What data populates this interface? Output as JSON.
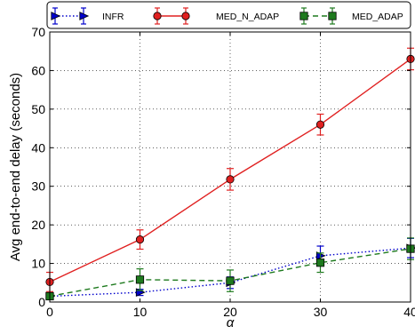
{
  "chart_data": {
    "type": "line",
    "xlabel": "α",
    "ylabel": "Avg end-to-end delay (seconds)",
    "x": [
      0,
      10,
      20,
      30,
      40
    ],
    "xlim": [
      0,
      40
    ],
    "ylim": [
      0,
      70
    ],
    "xticks": [
      "0",
      "10",
      "20",
      "30",
      "40"
    ],
    "yticks": [
      "0",
      "10",
      "20",
      "30",
      "40",
      "50",
      "60",
      "70"
    ],
    "grid": true,
    "legend_position": "top",
    "series": [
      {
        "name": "INFR",
        "values": [
          1.5,
          2.5,
          5,
          12,
          14
        ],
        "errors": [
          0.5,
          0.8,
          1.5,
          2.5,
          2.5
        ],
        "color": "#0000cc",
        "linestyle": "dotted",
        "marker": "triangle-right"
      },
      {
        "name": "MED_N_ADAP",
        "values": [
          5.2,
          16.2,
          31.8,
          46,
          63
        ],
        "errors": [
          2.5,
          2.5,
          2.8,
          2.7,
          2.8
        ],
        "color": "#e02020",
        "linestyle": "solid",
        "marker": "circle"
      },
      {
        "name": "MED_ADAP",
        "values": [
          1.5,
          5.8,
          5.5,
          10.2,
          13.8
        ],
        "errors": [
          0.5,
          2.8,
          2.8,
          2.5,
          2.8
        ],
        "color": "#1e7a1e",
        "linestyle": "dashed",
        "marker": "square"
      }
    ]
  }
}
